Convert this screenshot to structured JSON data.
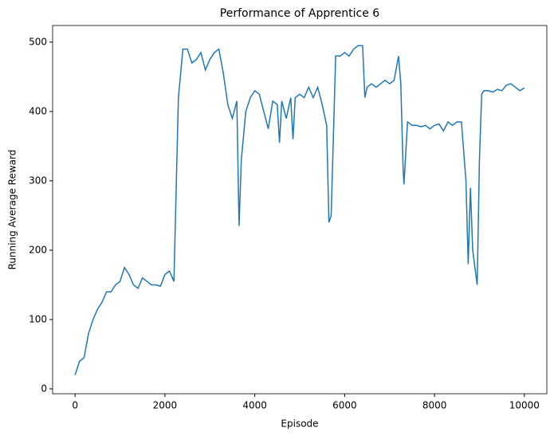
{
  "chart_data": {
    "type": "line",
    "title": "Performance of Apprentice 6",
    "x_label": "Episode",
    "y_label": "Running Average Reward",
    "x": [
      0,
      100,
      200,
      300,
      400,
      500,
      600,
      700,
      800,
      900,
      1000,
      1100,
      1200,
      1300,
      1400,
      1500,
      1600,
      1700,
      1800,
      1900,
      2000,
      2100,
      2200,
      2300,
      2400,
      2500,
      2600,
      2700,
      2800,
      2900,
      3000,
      3100,
      3200,
      3300,
      3400,
      3500,
      3600,
      3650,
      3700,
      3800,
      3900,
      4000,
      4100,
      4200,
      4300,
      4400,
      4500,
      4550,
      4600,
      4700,
      4800,
      4850,
      4900,
      5000,
      5100,
      5200,
      5300,
      5400,
      5500,
      5600,
      5650,
      5700,
      5800,
      5900,
      6000,
      6100,
      6200,
      6300,
      6400,
      6450,
      6500,
      6600,
      6700,
      6800,
      6900,
      7000,
      7100,
      7200,
      7250,
      7300,
      7320,
      7400,
      7500,
      7600,
      7700,
      7800,
      7900,
      8000,
      8100,
      8200,
      8300,
      8400,
      8500,
      8600,
      8700,
      8750,
      8800,
      8850,
      8900,
      8950,
      9000,
      9050,
      9100,
      9200,
      9300,
      9400,
      9500,
      9600,
      9700,
      9800,
      9900,
      9999
    ],
    "series": [
      {
        "name": "Running Average Reward",
        "color": "#1f77b4",
        "values": [
          20,
          40,
          45,
          80,
          100,
          115,
          125,
          140,
          140,
          150,
          155,
          175,
          165,
          150,
          145,
          160,
          155,
          150,
          150,
          148,
          165,
          170,
          155,
          420,
          490,
          490,
          470,
          475,
          485,
          460,
          475,
          485,
          490,
          455,
          410,
          390,
          415,
          235,
          330,
          400,
          420,
          430,
          425,
          400,
          375,
          415,
          410,
          355,
          415,
          390,
          420,
          360,
          420,
          425,
          420,
          435,
          420,
          435,
          410,
          380,
          240,
          250,
          480,
          480,
          485,
          480,
          490,
          495,
          495,
          420,
          435,
          440,
          435,
          440,
          445,
          440,
          445,
          480,
          440,
          320,
          295,
          385,
          380,
          380,
          378,
          380,
          375,
          380,
          382,
          372,
          385,
          380,
          385,
          385,
          300,
          180,
          290,
          200,
          175,
          150,
          330,
          425,
          430,
          430,
          428,
          432,
          430,
          438,
          440,
          435,
          430,
          434
        ]
      }
    ],
    "xlim": [
      -500,
      10500
    ],
    "ylim": [
      -7,
      524
    ],
    "xticks": [
      0,
      2000,
      4000,
      6000,
      8000,
      10000
    ],
    "yticks": [
      0,
      100,
      200,
      300,
      400,
      500
    ]
  }
}
